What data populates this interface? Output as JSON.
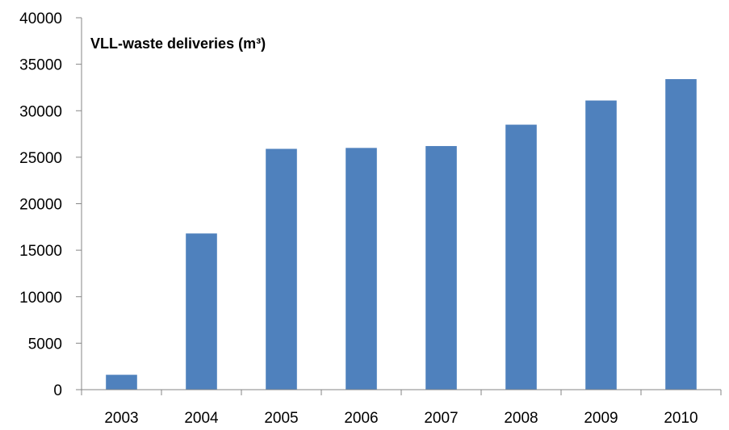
{
  "chart_data": {
    "type": "bar",
    "title": "VLL-waste  deliveries (m³)",
    "xlabel": "",
    "ylabel": "",
    "categories": [
      "2003",
      "2004",
      "2005",
      "2006",
      "2007",
      "2008",
      "2009",
      "2010"
    ],
    "values": [
      1600,
      16800,
      25900,
      26000,
      26200,
      28500,
      31100,
      33400
    ],
    "ylim": [
      0,
      40000
    ],
    "yticks": [
      "0",
      "5000",
      "10000",
      "15000",
      "20000",
      "25000",
      "30000",
      "35000",
      "40000"
    ],
    "grid": false,
    "legend": "none",
    "bar_color": "#4f81bd",
    "axis_color": "#868686"
  }
}
